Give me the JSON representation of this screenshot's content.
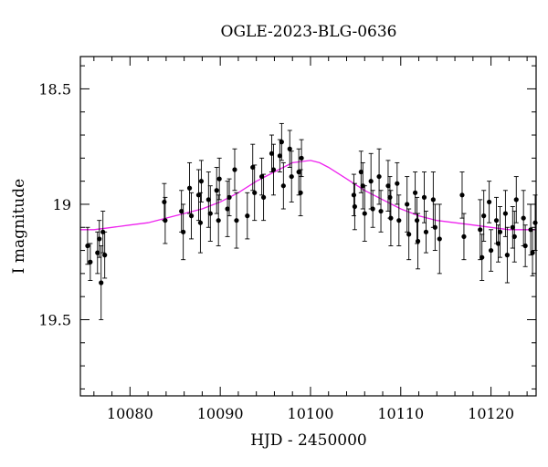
{
  "chart_data": {
    "type": "scatter",
    "title": "OGLE-2023-BLG-0636",
    "xlabel": "HJD - 2450000",
    "ylabel": "I magnitude",
    "xlim": [
      10074.5,
      10125
    ],
    "ylim": [
      19.83,
      18.36
    ],
    "y_inverted": true,
    "grid": false,
    "x_ticks": [
      10080,
      10090,
      10100,
      10110,
      10120
    ],
    "x_tick_labels": [
      "10080",
      "10090",
      "10100",
      "10110",
      "10120"
    ],
    "y_ticks": [
      18.5,
      19,
      19.5
    ],
    "y_tick_labels": [
      "18.5",
      "19",
      "19.5"
    ],
    "x_minor_step": 2,
    "y_minor_step": 0.1,
    "colors": {
      "data": "#000000",
      "model": "#ee22ee",
      "axes": "#000000"
    },
    "model": {
      "name": "",
      "color": "#ee22ee",
      "x": [
        10074.5,
        10076,
        10078,
        10080,
        10082,
        10084,
        10086,
        10088,
        10090,
        10092,
        10094,
        10096,
        10098,
        10100,
        10101,
        10102,
        10104,
        10106,
        10108,
        10110,
        10112,
        10114,
        10116,
        10118,
        10120,
        10122,
        10125
      ],
      "y": [
        19.11,
        19.11,
        19.1,
        19.09,
        19.08,
        19.06,
        19.04,
        19.02,
        18.99,
        18.95,
        18.9,
        18.86,
        18.82,
        18.81,
        18.82,
        18.84,
        18.89,
        18.94,
        18.98,
        19.02,
        19.05,
        19.07,
        19.08,
        19.09,
        19.1,
        19.11,
        19.11
      ]
    },
    "series": [
      {
        "name": "",
        "x": [
          10075.3,
          10075.6,
          10076.4,
          10076.6,
          10076.8,
          10077.0,
          10077.2,
          10083.8,
          10083.9,
          10085.7,
          10085.9,
          10086.6,
          10086.8,
          10087.6,
          10087.8,
          10087.9,
          10088.7,
          10088.9,
          10089.6,
          10089.8,
          10089.9,
          10090.8,
          10091.0,
          10091.6,
          10091.8,
          10093.0,
          10093.6,
          10093.8,
          10094.6,
          10094.8,
          10095.7,
          10095.9,
          10096.6,
          10096.8,
          10097.0,
          10097.7,
          10097.9,
          10098.7,
          10098.9,
          10099.0,
          10104.8,
          10104.9,
          10105.6,
          10105.8,
          10106.0,
          10106.7,
          10106.9,
          10107.6,
          10107.8,
          10108.6,
          10108.8,
          10108.9,
          10109.6,
          10109.8,
          10110.7,
          10110.9,
          10111.6,
          10111.8,
          10111.9,
          10112.6,
          10112.8,
          10113.6,
          10113.8,
          10114.3,
          10116.8,
          10117.0,
          10118.8,
          10119.0,
          10119.2,
          10119.8,
          10120.0,
          10120.6,
          10120.8,
          10121.0,
          10121.6,
          10121.8,
          10122.4,
          10122.6,
          10122.8,
          10123.6,
          10123.8,
          10124.4,
          10124.6,
          10124.9
        ],
        "y": [
          19.18,
          19.25,
          19.21,
          19.15,
          19.34,
          19.12,
          19.22,
          18.99,
          19.07,
          19.03,
          19.12,
          18.93,
          19.05,
          18.96,
          19.08,
          18.9,
          18.98,
          19.04,
          18.94,
          19.07,
          18.89,
          19.02,
          18.97,
          18.85,
          19.07,
          19.05,
          18.84,
          18.95,
          18.88,
          18.97,
          18.78,
          18.85,
          18.79,
          18.73,
          18.92,
          18.76,
          18.88,
          18.86,
          18.95,
          18.8,
          18.96,
          19.01,
          18.86,
          18.92,
          19.04,
          18.9,
          19.02,
          18.88,
          19.03,
          18.92,
          18.97,
          19.06,
          18.91,
          19.07,
          19.0,
          19.13,
          18.95,
          19.07,
          19.16,
          18.97,
          19.12,
          18.98,
          19.1,
          19.15,
          18.96,
          19.14,
          19.11,
          19.23,
          19.05,
          18.99,
          19.2,
          19.07,
          19.17,
          19.12,
          19.04,
          19.22,
          19.1,
          19.14,
          18.98,
          19.06,
          19.18,
          19.11,
          19.21,
          19.08
        ],
        "yerr": [
          0.08,
          0.08,
          0.09,
          0.08,
          0.16,
          0.09,
          0.1,
          0.08,
          0.1,
          0.09,
          0.12,
          0.11,
          0.1,
          0.11,
          0.13,
          0.09,
          0.12,
          0.12,
          0.1,
          0.11,
          0.09,
          0.12,
          0.08,
          0.09,
          0.12,
          0.1,
          0.1,
          0.12,
          0.08,
          0.1,
          0.08,
          0.11,
          0.07,
          0.08,
          0.1,
          0.08,
          0.11,
          0.1,
          0.1,
          0.08,
          0.09,
          0.1,
          0.09,
          0.1,
          0.12,
          0.12,
          0.08,
          0.12,
          0.09,
          0.11,
          0.09,
          0.12,
          0.09,
          0.11,
          0.12,
          0.11,
          0.09,
          0.1,
          0.12,
          0.11,
          0.09,
          0.12,
          0.1,
          0.15,
          0.1,
          0.1,
          0.13,
          0.1,
          0.11,
          0.09,
          0.09,
          0.1,
          0.08,
          0.11,
          0.1,
          0.12,
          0.09,
          0.11,
          0.1,
          0.12,
          0.09,
          0.11,
          0.1,
          0.12
        ]
      }
    ]
  }
}
